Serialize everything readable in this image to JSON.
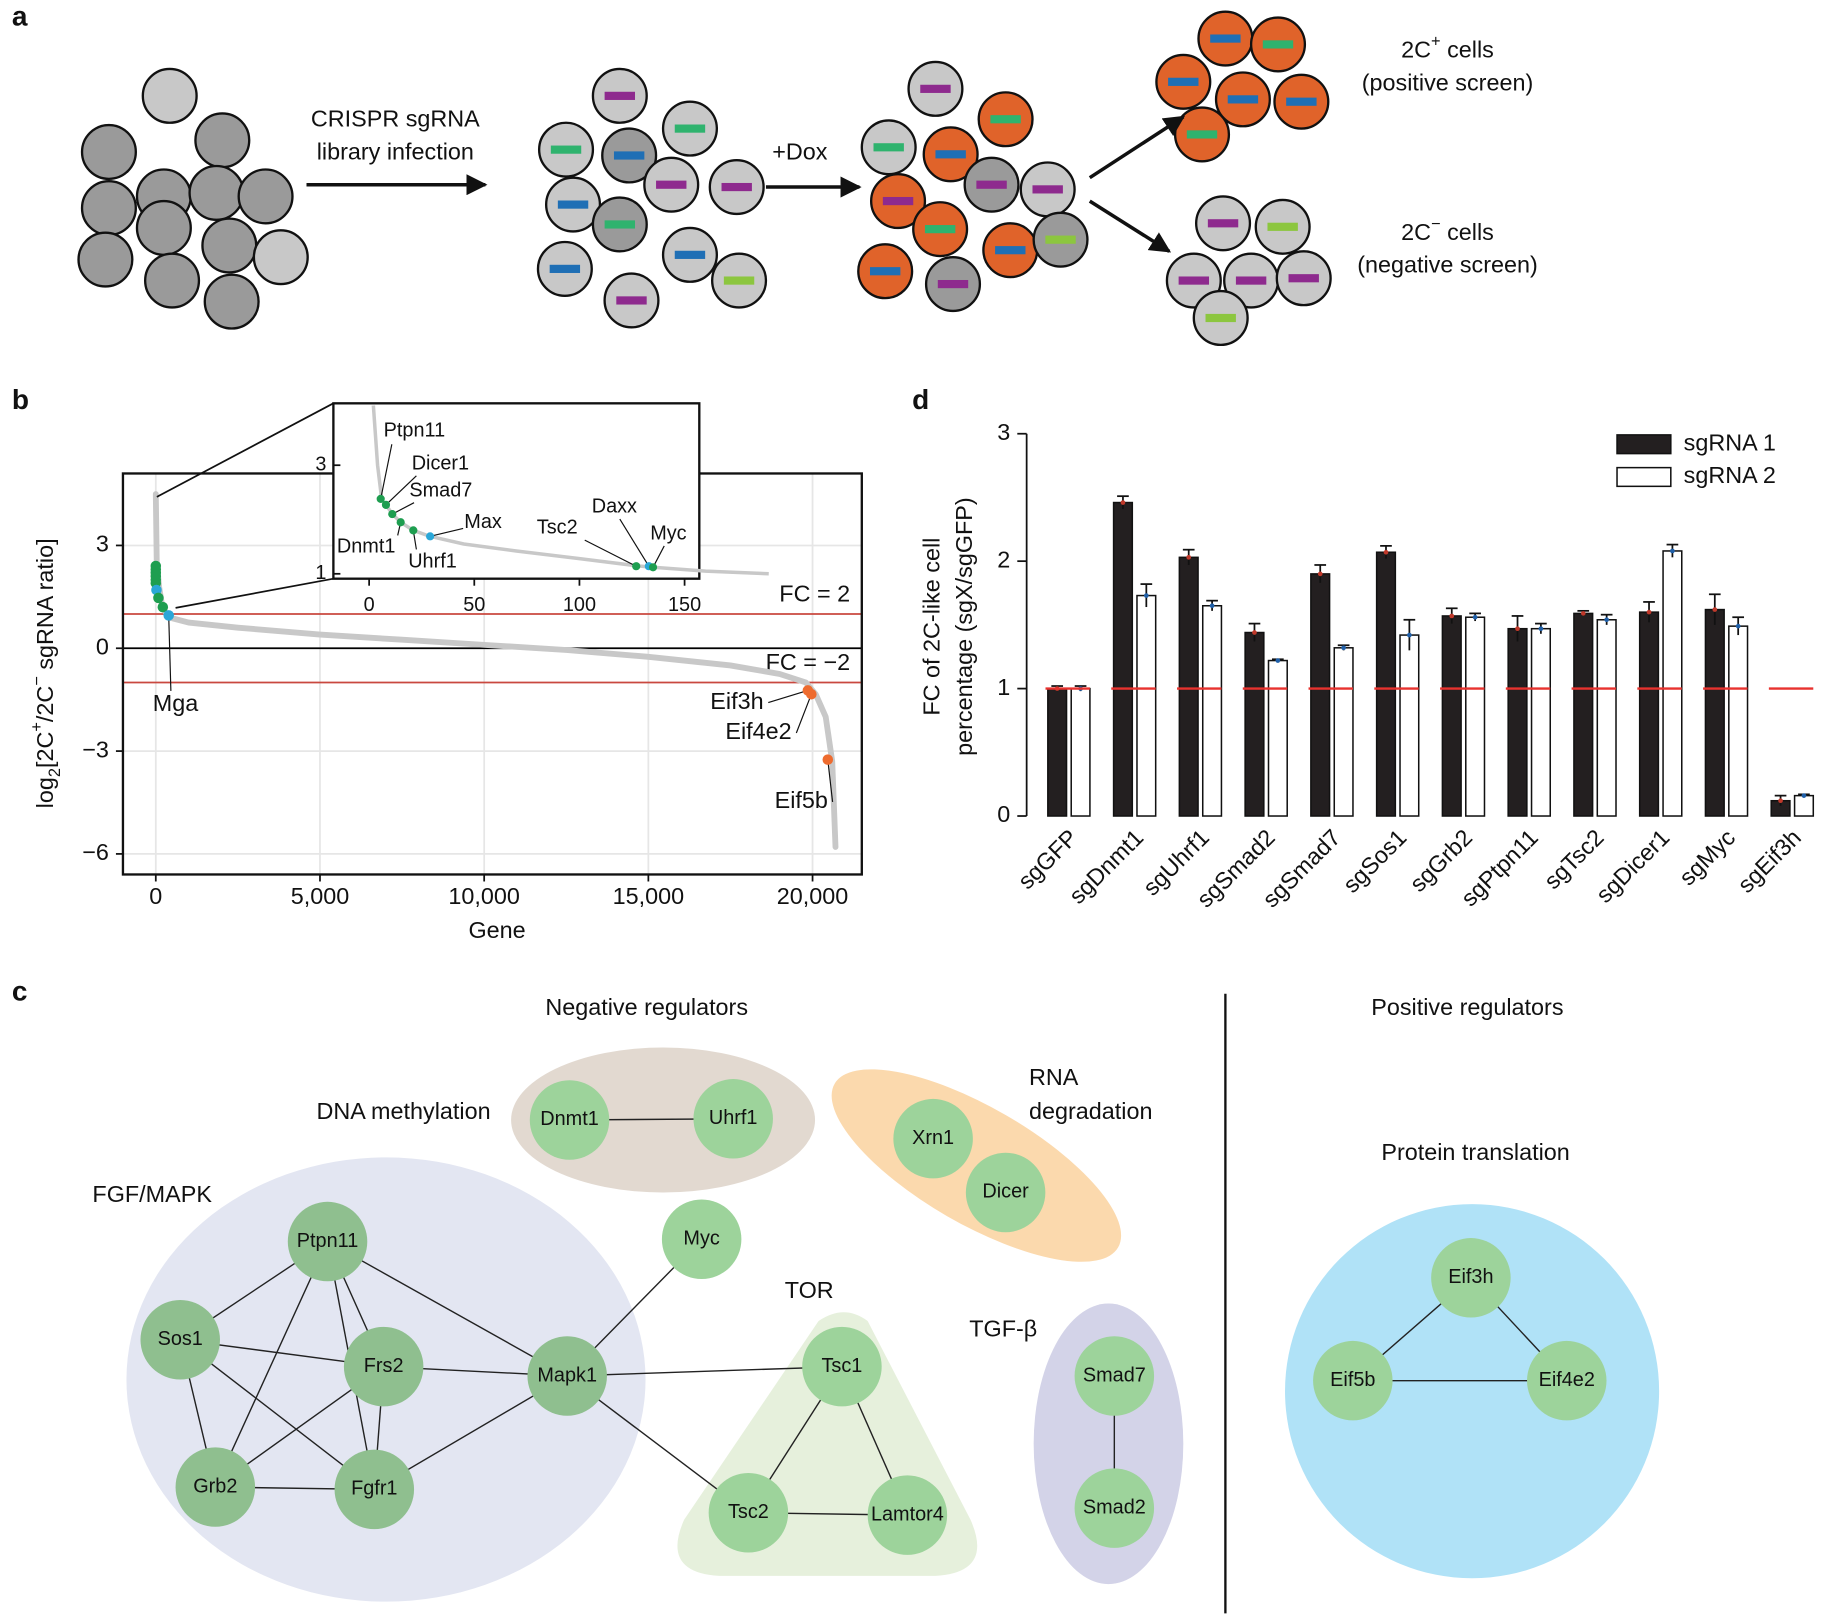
{
  "panel_labels": [
    "a",
    "b",
    "c",
    "d"
  ],
  "schematic": {
    "infection": [
      "CRISPR sgRNA",
      "library infection"
    ],
    "dox": "+Dox",
    "positive": {
      "cells": [
        "2C",
        "+",
        " cells"
      ],
      "screen": "(positive screen)"
    },
    "negative": {
      "cells": [
        "2C",
        "−",
        " cells"
      ],
      "screen": "(negative screen)"
    }
  },
  "chart_data": [
    {
      "type": "line",
      "xlabel": "Gene",
      "ylabel": [
        "log",
        "2",
        "[2C",
        "+",
        "/2C",
        "−",
        " sgRNA ratio]"
      ],
      "x": [
        0,
        30,
        100,
        200,
        400,
        1000,
        2500,
        5000,
        7500,
        10000,
        12500,
        15000,
        17500,
        19000,
        19800,
        20100,
        20400,
        20600,
        20700
      ],
      "values": [
        4.5,
        2.5,
        1.8,
        1.2,
        0.9,
        0.75,
        0.6,
        0.4,
        0.25,
        0.1,
        -0.05,
        -0.25,
        -0.5,
        -0.75,
        -1.0,
        -1.35,
        -2.0,
        -3.3,
        -5.8
      ],
      "color": "#c8c8c8",
      "xlim": [
        -1000,
        21500
      ],
      "xticks": [
        0,
        {
          "value": 5000,
          "label": "5,000"
        },
        {
          "value": 10000,
          "label": "10,000"
        },
        {
          "value": 15000,
          "label": "15,000"
        },
        {
          "value": 20000,
          "label": "20,000"
        }
      ],
      "ylim": [
        -6.6,
        5.1
      ],
      "yticks": [
        {
          "value": -6,
          "label": "−6"
        },
        {
          "value": -3,
          "label": "−3"
        },
        0,
        3
      ],
      "grid": true,
      "reference_lines": [
        {
          "value": 1,
          "label": "FC = 2",
          "color": "#c9483f"
        },
        {
          "value": -1,
          "label": "FC = −2",
          "color": "#c9483f"
        },
        {
          "value": 0,
          "color": "#000000"
        }
      ],
      "highlights": {
        "x": [
          0,
          0,
          0,
          0,
          0,
          0,
          20,
          80,
          214,
          393,
          19857,
          19964,
          20464
        ],
        "values": [
          2.4,
          2.3,
          2.2,
          2.1,
          2.0,
          1.9,
          1.7,
          1.47,
          1.2,
          0.96,
          -1.23,
          -1.34,
          -3.25
        ],
        "colors": [
          "#1e9e50",
          "#1e9e50",
          "#1e9e50",
          "#1e9e50",
          "#1e9e50",
          "#1e9e50",
          "#2aa7d8",
          "#1e9e50",
          "#1e9e50",
          "#2aa7d8",
          "#ee6b2e",
          "#ee6b2e",
          "#ee6b2e"
        ],
        "labels": [
          null,
          null,
          null,
          null,
          null,
          null,
          null,
          null,
          null,
          "Mga",
          "Eif3h",
          "Eif4e2",
          "Eif5b"
        ]
      },
      "inset": {
        "x": [
          2,
          4,
          6,
          8,
          11,
          15,
          21,
          29,
          45,
          70,
          100,
          127,
          135,
          160,
          190
        ],
        "values": [
          4.1,
          3.0,
          2.36,
          2.27,
          2.1,
          1.95,
          1.8,
          1.69,
          1.55,
          1.42,
          1.28,
          1.15,
          1.12,
          1.05,
          1.0
        ],
        "xlim": [
          -17,
          157
        ],
        "xticks": [
          0,
          50,
          100,
          150
        ],
        "ylim": [
          0.91,
          4.14
        ],
        "yticks": [
          1,
          3
        ],
        "highlights": {
          "x": [
            5.5,
            8,
            11,
            15,
            21,
            29,
            127,
            133,
            135
          ],
          "values": [
            2.38,
            2.27,
            2.1,
            1.95,
            1.8,
            1.69,
            1.14,
            1.14,
            1.12
          ],
          "colors": [
            "#1e9e50",
            "#1e9e50",
            "#1e9e50",
            "#1e9e50",
            "#1e9e50",
            "#2aa7d8",
            "#1e9e50",
            "#2aa7d8",
            "#1e9e50"
          ],
          "labels": [
            "Ptpn11",
            "Dicer1",
            "Smad7",
            "Dnmt1",
            "Uhrf1",
            "Max",
            "Tsc2",
            "Daxx",
            "Myc"
          ]
        }
      }
    },
    {
      "type": "bar",
      "ylabel": [
        "FC of 2C-like cell",
        "percentage (sgX/sgGFP)"
      ],
      "categories": [
        "sgGFP",
        "sgDnmt1",
        "sgUhrf1",
        "sgSmad2",
        "sgSmad7",
        "sgSos1",
        "sgGrb2",
        "sgPtpn11",
        "sgTsc2",
        "sgDicer1",
        "sgMyc",
        "sgEif3h"
      ],
      "series": [
        {
          "name": "sgRNA 1",
          "color": "#231f20",
          "values": [
            1.0,
            2.46,
            2.03,
            1.44,
            1.9,
            2.07,
            1.57,
            1.47,
            1.59,
            1.6,
            1.62,
            0.12
          ],
          "errors": [
            0.02,
            0.05,
            0.06,
            0.07,
            0.07,
            0.05,
            0.06,
            0.1,
            0.02,
            0.08,
            0.12,
            0.04
          ]
        },
        {
          "name": "sgRNA 2",
          "color": "#ffffff",
          "values": [
            1.0,
            1.73,
            1.65,
            1.22,
            1.32,
            1.42,
            1.56,
            1.47,
            1.54,
            2.08,
            1.49,
            0.16
          ],
          "errors": [
            0.02,
            0.09,
            0.04,
            0.01,
            0.02,
            0.12,
            0.03,
            0.04,
            0.04,
            0.05,
            0.07,
            0.01
          ]
        }
      ],
      "ylim": [
        0,
        3
      ],
      "yticks": [
        0,
        1,
        2,
        3
      ],
      "reference_line": {
        "value": 1,
        "color": "#e8322e"
      },
      "legend": "top-right"
    }
  ],
  "network": {
    "headers": [
      "Negative regulators",
      "Positive regulators"
    ],
    "modules": [
      [
        "DNA methylation"
      ],
      [
        "RNA",
        "degradation"
      ],
      [
        "FGF/MAPK"
      ],
      [
        "TOR"
      ],
      [
        "TGF-β"
      ],
      [
        "Protein translation"
      ]
    ],
    "nodes": [
      "Dnmt1",
      "Uhrf1",
      "Xrn1",
      "Dicer",
      "Myc",
      "Ptpn11",
      "Sos1",
      "Frs2",
      "Mapk1",
      "Grb2",
      "Fgfr1",
      "Tsc1",
      "Tsc2",
      "Lamtor4",
      "Smad7",
      "Smad2",
      "Eif3h",
      "Eif5b",
      "Eif4e2"
    ]
  }
}
